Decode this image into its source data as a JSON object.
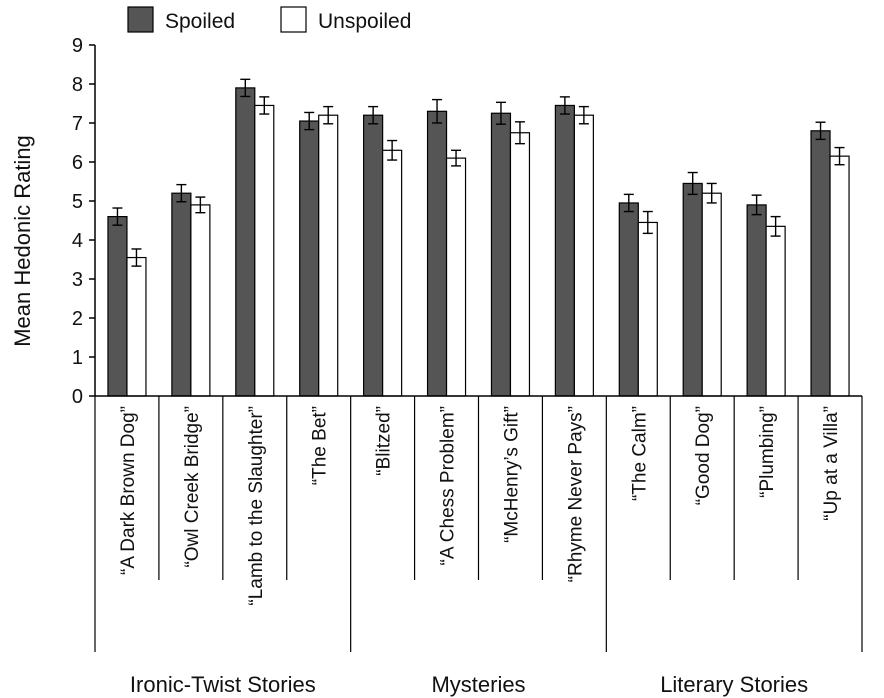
{
  "chart_data": {
    "type": "bar",
    "ylabel": "Mean Hedonic Rating",
    "ylim": [
      0,
      9
    ],
    "yticks": [
      "0",
      "1",
      "2",
      "3",
      "4",
      "5",
      "6",
      "7",
      "8",
      "9"
    ],
    "categories": [
      "“A Dark Brown Dog”",
      "“Owl Creek Bridge”",
      "“Lamb to the Slaughter”",
      "“The Bet”",
      "“Blitzed”",
      "“A Chess Problem”",
      "“McHenry’s Gift”",
      "“Rhyme Never Pays”",
      "“The Calm”",
      "“Good Dog”",
      "“Plumbing”",
      "“Up at a Villa”"
    ],
    "groups": [
      {
        "label": "Ironic-Twist Stories",
        "start": 0,
        "end": 3
      },
      {
        "label": "Mysteries",
        "start": 4,
        "end": 7
      },
      {
        "label": "Literary Stories",
        "start": 8,
        "end": 11
      }
    ],
    "series": [
      {
        "name": "Spoiled",
        "color": "#555555",
        "values": [
          4.6,
          5.2,
          7.9,
          7.05,
          7.2,
          7.3,
          7.25,
          7.45,
          4.95,
          5.45,
          4.9,
          6.8
        ],
        "errors": [
          0.22,
          0.22,
          0.22,
          0.22,
          0.22,
          0.3,
          0.28,
          0.22,
          0.22,
          0.28,
          0.25,
          0.22
        ]
      },
      {
        "name": "Unspoiled",
        "color": "#ffffff",
        "values": [
          3.55,
          4.9,
          7.45,
          7.2,
          6.3,
          6.1,
          6.75,
          7.2,
          4.45,
          5.2,
          4.35,
          6.15
        ],
        "errors": [
          0.22,
          0.2,
          0.22,
          0.22,
          0.25,
          0.2,
          0.28,
          0.22,
          0.28,
          0.25,
          0.25,
          0.22
        ]
      }
    ],
    "legend_position": "top-left"
  }
}
